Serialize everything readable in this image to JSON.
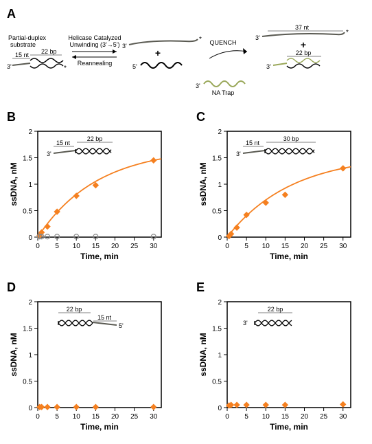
{
  "panelA": {
    "label": "A",
    "substrate_text": "Partial-duplex\nsubstrate",
    "overhang_label": "15 nt",
    "duplex_label": "22 bp",
    "top_arrow_text": "Helicase Catalyzed\nUnwinding (3'→5')",
    "bottom_arrow_text": "Reannealing",
    "top_strand_label": "37 nt",
    "quench_label": "QUENCH",
    "trap_label": "NA Trap",
    "product_duplex_label": "22 bp",
    "prime3": "3'",
    "prime5": "5'",
    "asterisk": "*",
    "colors": {
      "strand_dark": "#5a5a52",
      "strand_olive": "#9aa85a",
      "text": "#000000"
    }
  },
  "charts": {
    "ylabel": "ssDNA, nM",
    "xlabel": "Time, min",
    "ylim": [
      0,
      2
    ],
    "yticks": [
      0,
      0.5,
      1,
      1.5,
      2
    ],
    "xlim": [
      0,
      32
    ],
    "xticks": [
      0,
      5,
      10,
      15,
      20,
      25,
      30
    ],
    "marker_color": "#f58020",
    "line_color": "#f58020",
    "open_marker_stroke": "#888888",
    "axis_fontsize": 12,
    "tick_fontsize": 10,
    "B": {
      "label": "B",
      "inset_overhang": "15 nt",
      "inset_duplex": "22 bp",
      "inset_prime": "3'",
      "data_times": [
        0.5,
        1,
        2.5,
        5,
        10,
        15,
        30
      ],
      "data_vals": [
        0.03,
        0.09,
        0.2,
        0.48,
        0.78,
        0.98,
        1.45
      ],
      "open_times": [
        0.5,
        1,
        2.5,
        5,
        10,
        15,
        30
      ],
      "open_vals": [
        0.01,
        0.01,
        0.01,
        0.01,
        0.01,
        0.01,
        0.01
      ],
      "has_curve": true
    },
    "C": {
      "label": "C",
      "inset_overhang": "15 nt",
      "inset_duplex": "30 bp",
      "inset_prime": "3'",
      "data_times": [
        0.5,
        1,
        2.5,
        5,
        10,
        15,
        30
      ],
      "data_vals": [
        0.02,
        0.06,
        0.18,
        0.42,
        0.65,
        0.8,
        1.3
      ],
      "has_curve": true
    },
    "D": {
      "label": "D",
      "inset_overhang": "15 nt",
      "inset_duplex": "22 bp",
      "inset_prime": "5'",
      "inset_side": "right",
      "data_times": [
        0.5,
        1,
        2.5,
        5,
        10,
        15,
        30
      ],
      "data_vals": [
        0.01,
        0.01,
        0.01,
        0.01,
        0.01,
        0.01,
        0.01
      ],
      "has_curve": false
    },
    "E": {
      "label": "E",
      "inset_overhang": "",
      "inset_duplex": "22 bp",
      "inset_prime": "3'",
      "inset_blunt": true,
      "data_times": [
        0.5,
        1,
        2.5,
        5,
        10,
        15,
        30
      ],
      "data_vals": [
        0.04,
        0.05,
        0.05,
        0.05,
        0.05,
        0.05,
        0.06
      ],
      "has_curve": false
    }
  }
}
